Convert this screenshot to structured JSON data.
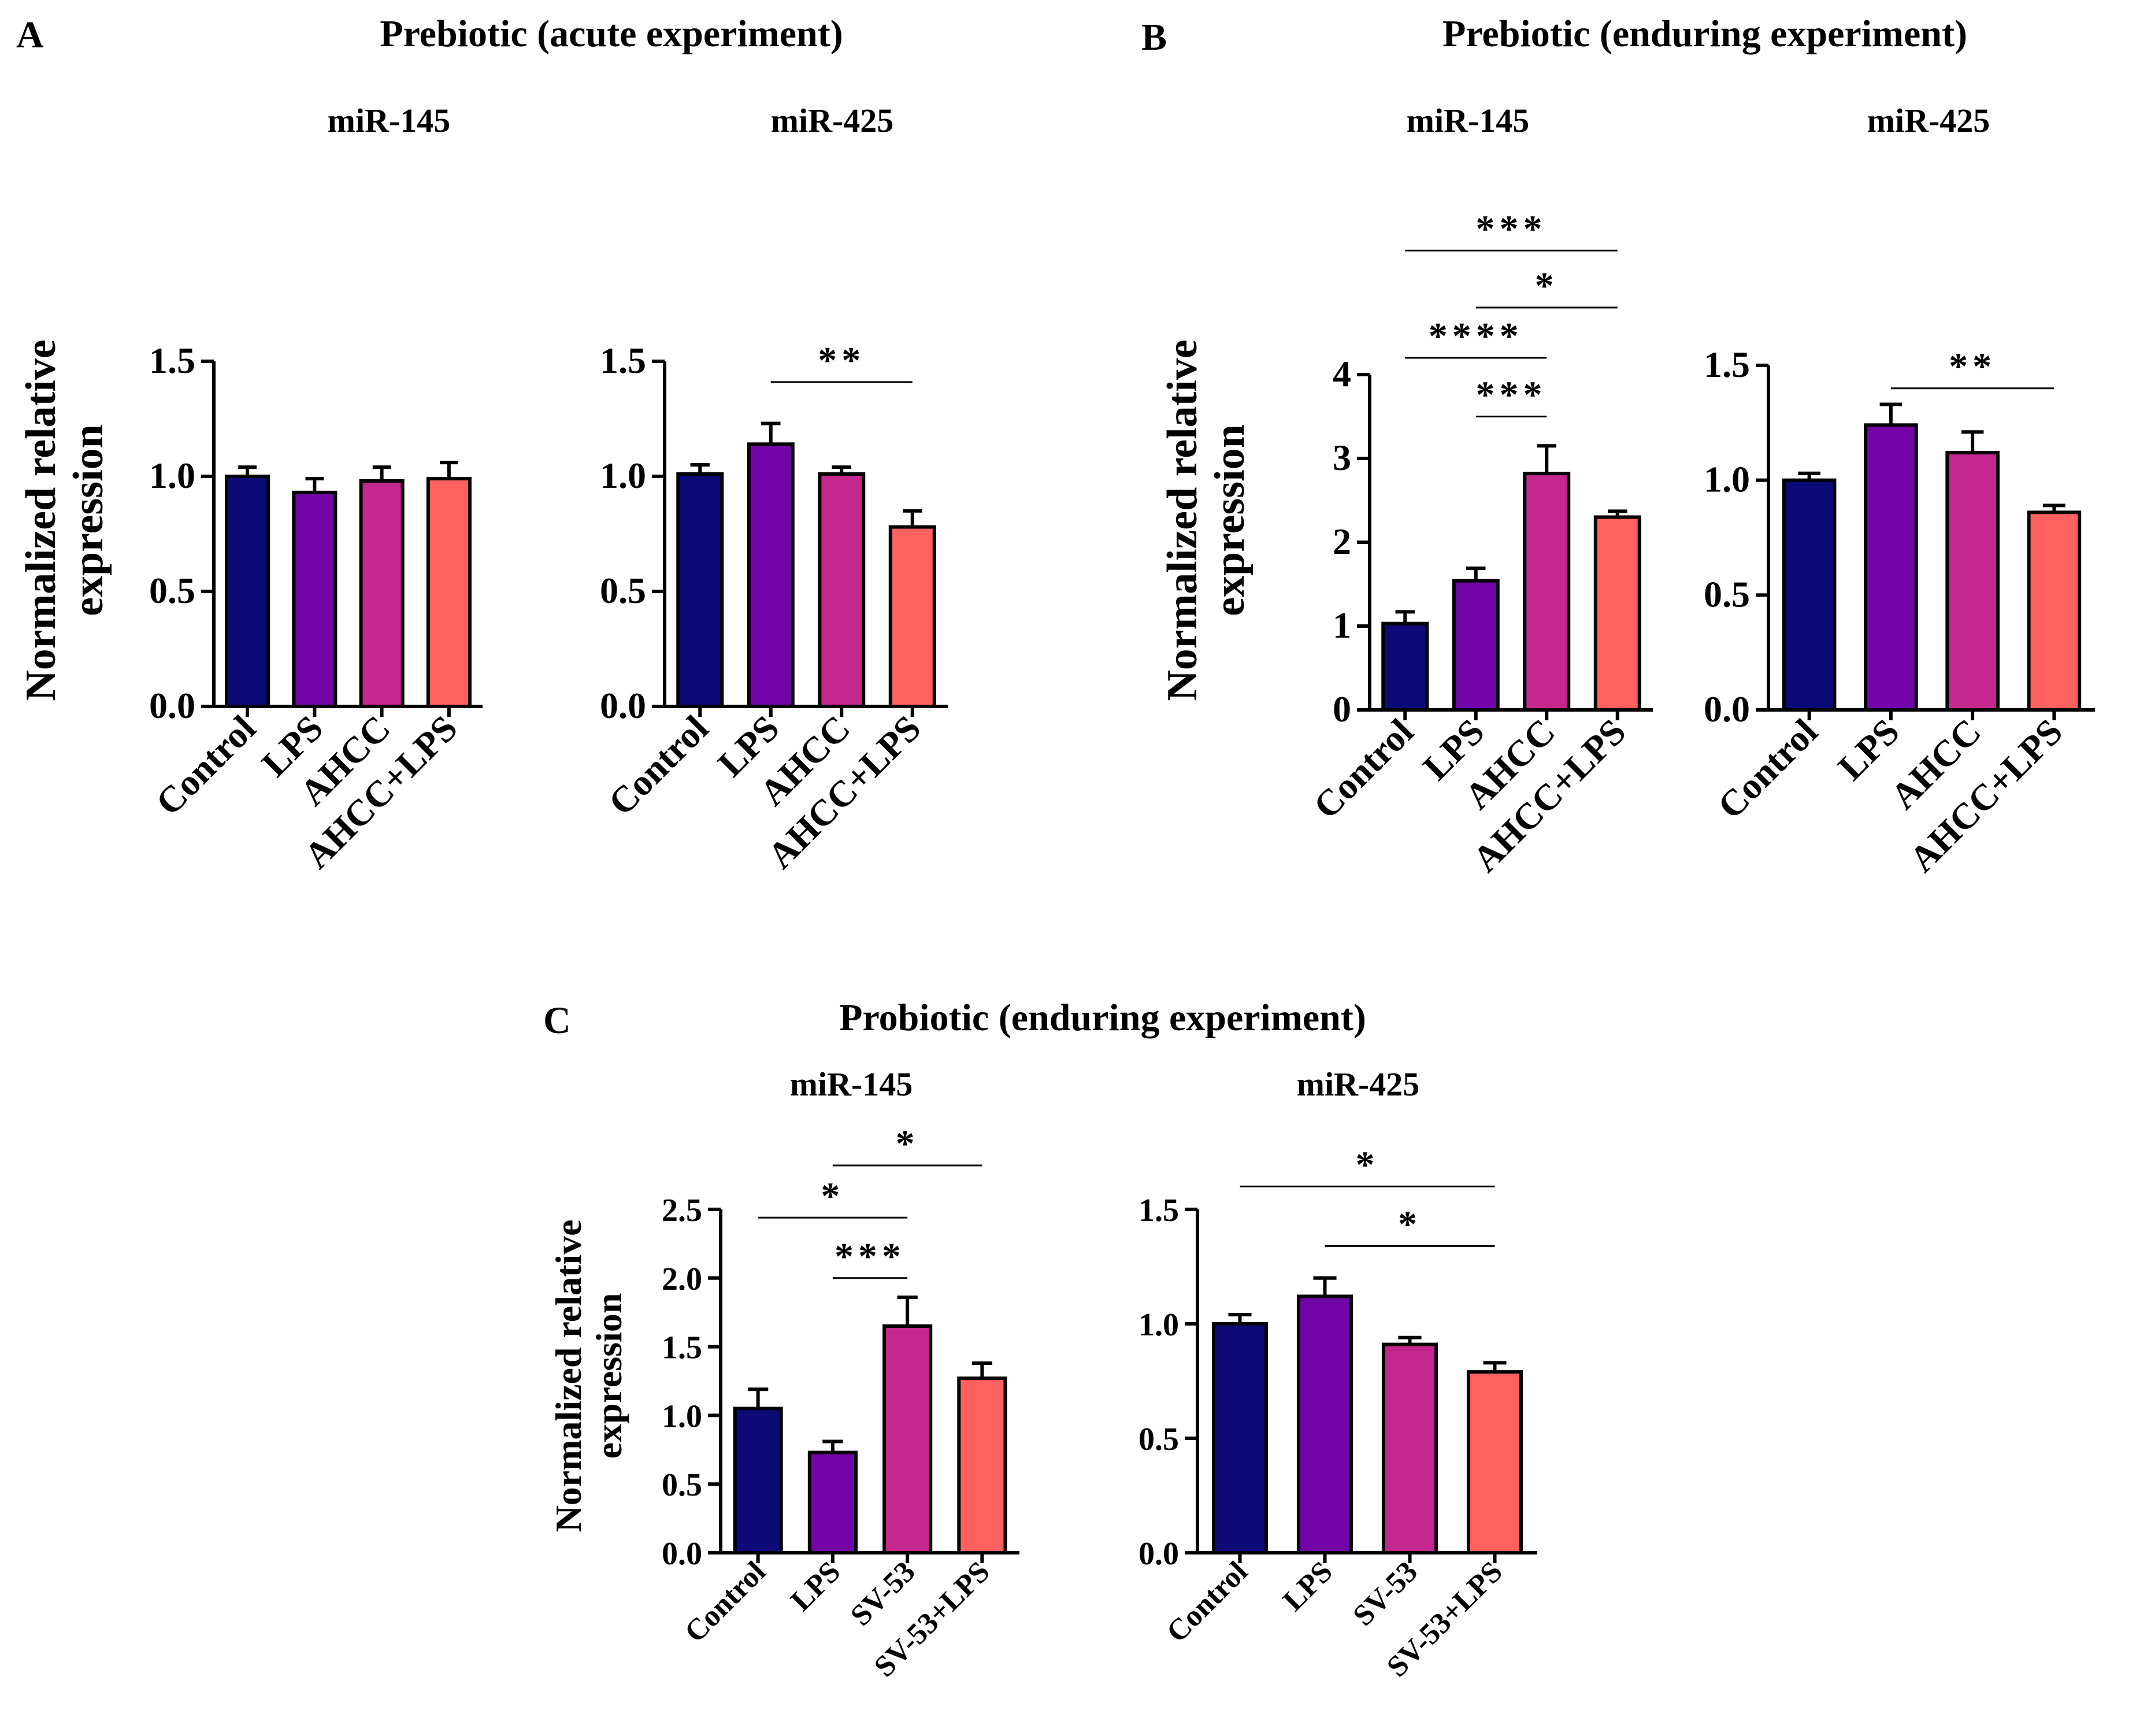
{
  "colors": {
    "Control": "#0d0a78",
    "LPS": "#7305a8",
    "AHCC": "#c4288f",
    "AHCC+LPS": "#ff6160",
    "SV-53": "#c4288f",
    "SV-53+LPS": "#ff6160"
  },
  "panels": [
    {
      "letter": "A",
      "title": "Prebiotic (acute experiment)"
    },
    {
      "letter": "B",
      "title": "Prebiotic (enduring experiment)"
    },
    {
      "letter": "C",
      "title": "Probiotic (enduring experiment)"
    }
  ],
  "chart_data": [
    {
      "type": "bar",
      "panel": "A",
      "title": "miR-145",
      "ylabel": [
        "Normalized relative",
        "expression"
      ],
      "categories": [
        "Control",
        "LPS",
        "AHCC",
        "AHCC+LPS"
      ],
      "values": [
        1.0,
        0.93,
        0.98,
        0.99
      ],
      "errors": [
        0.04,
        0.06,
        0.06,
        0.07
      ],
      "ylim": [
        0,
        1.5
      ],
      "ticks": [
        "0.0",
        "0.5",
        "1.0",
        "1.5"
      ],
      "significance": []
    },
    {
      "type": "bar",
      "panel": "A",
      "title": "miR-425",
      "categories": [
        "Control",
        "LPS",
        "AHCC",
        "AHCC+LPS"
      ],
      "values": [
        1.01,
        1.14,
        1.01,
        0.78
      ],
      "errors": [
        0.04,
        0.09,
        0.03,
        0.07
      ],
      "ylim": [
        0,
        1.5
      ],
      "ticks": [
        "0.0",
        "0.5",
        "1.0",
        "1.5"
      ],
      "significance": [
        {
          "from": 1,
          "to": 3,
          "label": "**",
          "y": 1.41
        }
      ]
    },
    {
      "type": "bar",
      "panel": "B",
      "title": "miR-145",
      "ylabel": [
        "Normalized relative",
        "expression"
      ],
      "categories": [
        "Control",
        "LPS",
        "AHCC",
        "AHCC+LPS"
      ],
      "values": [
        1.03,
        1.54,
        2.82,
        2.3
      ],
      "errors": [
        0.14,
        0.15,
        0.33,
        0.07
      ],
      "ylim": [
        0,
        4
      ],
      "ticks": [
        "0",
        "1",
        "2",
        "3",
        "4"
      ],
      "significance": [
        {
          "from": 0,
          "to": 3,
          "label": "***",
          "y": 5.48
        },
        {
          "from": 1,
          "to": 3,
          "label": "*",
          "y": 4.8
        },
        {
          "from": 0,
          "to": 2,
          "label": "****",
          "y": 4.2
        },
        {
          "from": 1,
          "to": 2,
          "label": "***",
          "y": 3.5
        }
      ]
    },
    {
      "type": "bar",
      "panel": "B",
      "title": "miR-425",
      "categories": [
        "Control",
        "LPS",
        "AHCC",
        "AHCC+LPS"
      ],
      "values": [
        1.0,
        1.24,
        1.12,
        0.86
      ],
      "errors": [
        0.03,
        0.09,
        0.09,
        0.03
      ],
      "ylim": [
        0,
        1.5
      ],
      "ticks": [
        "0.0",
        "0.5",
        "1.0",
        "1.5"
      ],
      "significance": [
        {
          "from": 1,
          "to": 3,
          "label": "**",
          "y": 1.4
        }
      ]
    },
    {
      "type": "bar",
      "panel": "C",
      "title": "miR-145",
      "ylabel": [
        "Normalized relative",
        "expression"
      ],
      "categories": [
        "Control",
        "LPS",
        "SV-53",
        "SV-53+LPS"
      ],
      "values": [
        1.05,
        0.73,
        1.65,
        1.27
      ],
      "errors": [
        0.14,
        0.08,
        0.21,
        0.11
      ],
      "ylim": [
        0,
        2.5
      ],
      "ticks": [
        "0.0",
        "0.5",
        "1.0",
        "1.5",
        "2.0",
        "2.5"
      ],
      "significance": [
        {
          "from": 1,
          "to": 3,
          "label": "*",
          "y": 2.82
        },
        {
          "from": 0,
          "to": 2,
          "label": "*",
          "y": 2.44
        },
        {
          "from": 1,
          "to": 2,
          "label": "***",
          "y": 2.0
        }
      ]
    },
    {
      "type": "bar",
      "panel": "C",
      "title": "miR-425",
      "categories": [
        "Control",
        "LPS",
        "SV-53",
        "SV-53+LPS"
      ],
      "values": [
        1.0,
        1.12,
        0.91,
        0.79
      ],
      "errors": [
        0.04,
        0.08,
        0.03,
        0.04
      ],
      "ylim": [
        0,
        1.5
      ],
      "ticks": [
        "0.0",
        "0.5",
        "1.0",
        "1.5"
      ],
      "significance": [
        {
          "from": 0,
          "to": 3,
          "label": "*",
          "y": 1.6
        },
        {
          "from": 1,
          "to": 3,
          "label": "*",
          "y": 1.34
        }
      ]
    }
  ]
}
